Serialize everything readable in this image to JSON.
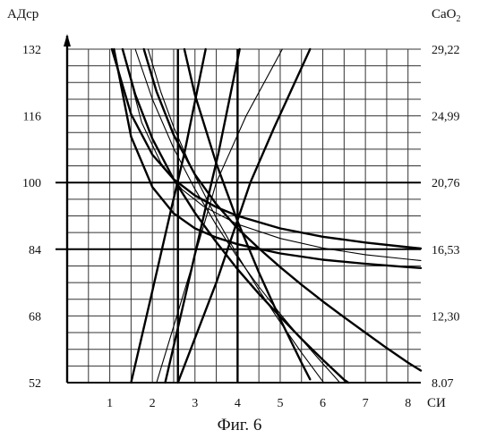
{
  "chart_data": {
    "type": "line",
    "left_axis_label": "АДср",
    "right_axis_label": "CaO",
    "right_axis_label_sub": "2",
    "x_axis_label": "СИ",
    "caption": "Фиг. 6",
    "xlim": [
      0,
      8.3
    ],
    "ylim": [
      52,
      132
    ],
    "x_ticks": [
      1,
      2,
      3,
      4,
      5,
      6,
      7,
      8
    ],
    "left_ticks": [
      52,
      68,
      84,
      100,
      116,
      132
    ],
    "right_ticks": [
      "8.07",
      "12,30",
      "16,53",
      "20,76",
      "24,99",
      "29,22"
    ],
    "grid": true,
    "reference_lines": {
      "vertical": [
        2.6,
        4.0
      ],
      "horizontal": [
        84,
        100
      ]
    },
    "series": [
      {
        "kind": "hyperbola",
        "weight": "bold",
        "points": [
          [
            1.05,
            132
          ],
          [
            1.5,
            116.4
          ],
          [
            2,
            106.7
          ],
          [
            2.5,
            100.8
          ],
          [
            3,
            96.9
          ],
          [
            3.5,
            94.1
          ],
          [
            4,
            92
          ],
          [
            5,
            89
          ],
          [
            6,
            87
          ],
          [
            7,
            85.6
          ],
          [
            8,
            84.5
          ],
          [
            8.3,
            84.2
          ]
        ]
      },
      {
        "kind": "hyperbola",
        "weight": "thin",
        "points": [
          [
            1.3,
            132
          ],
          [
            1.75,
            114.4
          ],
          [
            2.2,
            104.7
          ],
          [
            2.7,
            98.3
          ],
          [
            3.2,
            94.3
          ],
          [
            4,
            90
          ],
          [
            5,
            86.6
          ],
          [
            6,
            84.3
          ],
          [
            7,
            82.7
          ],
          [
            8,
            81.6
          ],
          [
            8.3,
            81.3
          ]
        ]
      },
      {
        "kind": "hyperbola",
        "weight": "bold",
        "points": [
          [
            1.1,
            132
          ],
          [
            1.5,
            111
          ],
          [
            2,
            98.9
          ],
          [
            2.5,
            92.6
          ],
          [
            3,
            89
          ],
          [
            3.5,
            86.8
          ],
          [
            4,
            85.2
          ],
          [
            5,
            83
          ],
          [
            6,
            81.5
          ],
          [
            7,
            80.5
          ],
          [
            8,
            79.7
          ],
          [
            8.3,
            79.5
          ]
        ]
      },
      {
        "kind": "hyperbola",
        "weight": "bold",
        "points": [
          [
            1.8,
            132
          ],
          [
            2.1,
            121.8
          ],
          [
            2.5,
            111.4
          ],
          [
            3,
            101.9
          ],
          [
            3.5,
            94.8
          ],
          [
            4,
            89
          ],
          [
            4.5,
            84.2
          ],
          [
            5,
            79.7
          ],
          [
            5.5,
            75.5
          ],
          [
            6,
            71.5
          ],
          [
            6.5,
            67.7
          ],
          [
            7,
            64
          ],
          [
            7.5,
            60.3
          ],
          [
            8,
            56.8
          ],
          [
            8.3,
            54.9
          ]
        ]
      },
      {
        "kind": "hyperbola",
        "weight": "thin",
        "points": [
          [
            1.6,
            132
          ],
          [
            2,
            120
          ],
          [
            2.5,
            108.2
          ],
          [
            3,
            98.4
          ],
          [
            3.5,
            89.8
          ],
          [
            4,
            82
          ],
          [
            4.5,
            75
          ],
          [
            5,
            68.5
          ],
          [
            5.5,
            62.4
          ],
          [
            6,
            56.6
          ],
          [
            6.2,
            54.3
          ],
          [
            6.4,
            52
          ]
        ]
      },
      {
        "kind": "hyperbola",
        "weight": "bold",
        "points": [
          [
            1.3,
            132
          ],
          [
            1.6,
            121.1
          ],
          [
            2,
            110.5
          ],
          [
            2.5,
            100.8
          ],
          [
            3,
            92.7
          ],
          [
            3.5,
            85.7
          ],
          [
            4,
            79.2
          ],
          [
            4.5,
            73.3
          ],
          [
            5,
            67.8
          ],
          [
            5.5,
            62.5
          ],
          [
            6,
            57.5
          ],
          [
            6.5,
            52.7
          ],
          [
            6.6,
            52
          ]
        ]
      },
      {
        "kind": "hyperbola",
        "weight": "thin",
        "points": [
          [
            1.9,
            132
          ],
          [
            2.2,
            121.7
          ],
          [
            2.5,
            113.3
          ],
          [
            3,
            101.6
          ],
          [
            3.5,
            91.5
          ],
          [
            4,
            82.5
          ],
          [
            4.5,
            74.2
          ],
          [
            5,
            66.5
          ],
          [
            5.5,
            59.2
          ],
          [
            6,
            52.3
          ],
          [
            6.03,
            52
          ]
        ]
      },
      {
        "kind": "hyperbola",
        "weight": "bold",
        "points": [
          [
            2.75,
            132
          ],
          [
            3,
            121
          ],
          [
            3.5,
            104.6
          ],
          [
            4,
            90.7
          ],
          [
            4.5,
            78.4
          ],
          [
            5,
            67.2
          ],
          [
            5.5,
            56.8
          ],
          [
            5.7,
            52.8
          ]
        ]
      },
      {
        "kind": "line",
        "weight": "bold",
        "points": [
          [
            1.5,
            52
          ],
          [
            2.0,
            74
          ],
          [
            2.45,
            94
          ],
          [
            2.75,
            107
          ],
          [
            3.25,
            132
          ]
        ]
      },
      {
        "kind": "line",
        "weight": "bold",
        "points": [
          [
            2.3,
            52
          ],
          [
            2.8,
            74
          ],
          [
            3.25,
            94
          ],
          [
            3.55,
            107
          ],
          [
            4.05,
            132
          ]
        ]
      },
      {
        "kind": "line",
        "weight": "thin",
        "points": [
          [
            2.1,
            52
          ],
          [
            2.9,
            79
          ],
          [
            3.5,
            100
          ],
          [
            4.2,
            116
          ],
          [
            5.05,
            132
          ]
        ]
      },
      {
        "kind": "line",
        "weight": "bold",
        "points": [
          [
            2.6,
            52
          ],
          [
            3.5,
            76
          ],
          [
            4.3,
            100
          ],
          [
            4.85,
            113
          ],
          [
            5.7,
            132
          ]
        ]
      }
    ]
  }
}
